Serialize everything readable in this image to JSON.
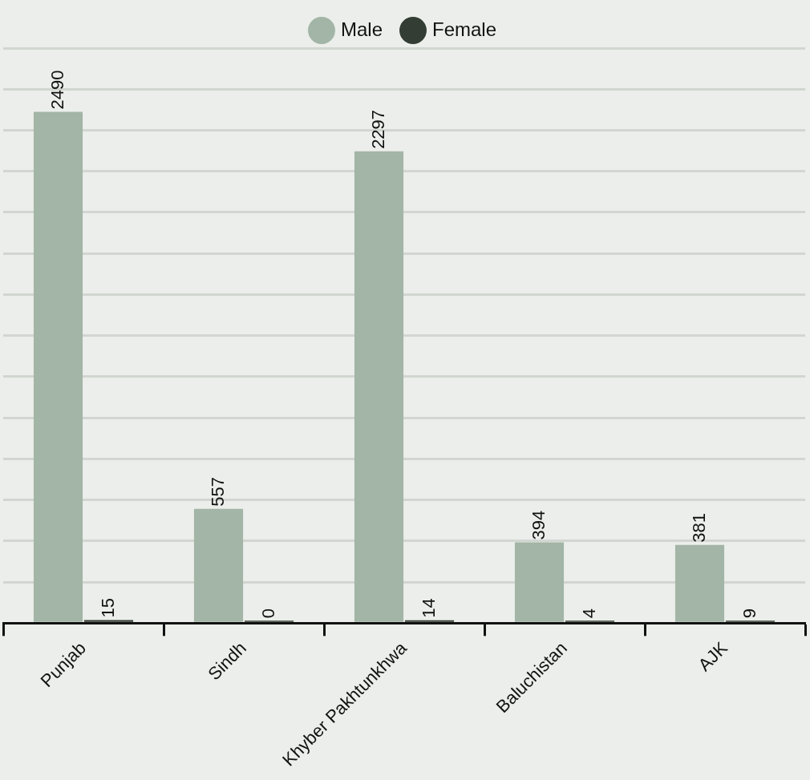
{
  "chart_data": {
    "type": "bar",
    "categories": [
      "Punjab",
      "Sindh",
      "Khyber Pakhtunkhwa",
      "Baluchistan",
      "AJK"
    ],
    "series": [
      {
        "name": "Male",
        "color": "#a3b5a6",
        "values": [
          2490,
          557,
          2297,
          394,
          381
        ]
      },
      {
        "name": "Female",
        "color": "#333d33",
        "values": [
          15,
          0,
          14,
          4,
          9
        ]
      }
    ],
    "ylim": [
      0,
      2800
    ],
    "yticks": [
      {
        "value": 0,
        "label": null
      },
      {
        "value": 200,
        "label": null
      },
      {
        "value": 400,
        "label": null
      },
      {
        "value": 600,
        "label": null
      },
      {
        "value": 800,
        "label": null
      },
      {
        "value": 1000,
        "label": null
      },
      {
        "value": 1200,
        "label": null
      },
      {
        "value": 1400,
        "label": null
      },
      {
        "value": 1600,
        "label": null
      },
      {
        "value": 1800,
        "label": null
      },
      {
        "value": 2000,
        "label": null
      },
      {
        "value": 2200,
        "label": null
      },
      {
        "value": 2400,
        "label": null
      },
      {
        "value": 2600,
        "label": null
      },
      {
        "value": 2800,
        "label": null
      }
    ],
    "grid": "y",
    "legend": "top",
    "data_labels": true,
    "tick_labels": "x"
  }
}
